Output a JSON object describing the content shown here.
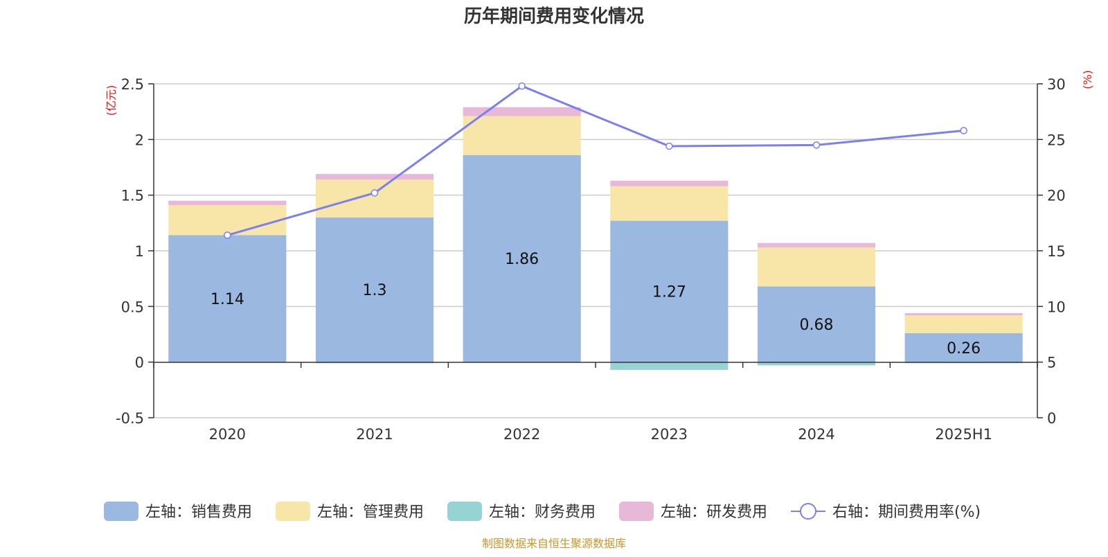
{
  "chart_data": {
    "type": "bar",
    "title": "历年期间费用变化情况",
    "categories": [
      "2020",
      "2021",
      "2022",
      "2023",
      "2024",
      "2025H1"
    ],
    "left_axis": {
      "unit": "(亿元)",
      "ylim": [
        -0.5,
        2.5
      ],
      "ticks": [
        "2.5",
        "2",
        "1.5",
        "1",
        "0.5",
        "0",
        "-0.5"
      ]
    },
    "right_axis": {
      "unit": "(%)",
      "ylim": [
        0,
        30
      ],
      "ticks": [
        "30",
        "25",
        "20",
        "15",
        "10",
        "5",
        "0"
      ]
    },
    "series": [
      {
        "name": "左轴：销售费用",
        "type": "stacked-bar",
        "axis": "left",
        "color": "#9bb8e0",
        "values": [
          1.14,
          1.3,
          1.86,
          1.27,
          0.68,
          0.26
        ],
        "labels": [
          "1.14",
          "1.3",
          "1.86",
          "1.27",
          "0.68",
          "0.26"
        ]
      },
      {
        "name": "左轴：管理费用",
        "type": "stacked-bar",
        "axis": "left",
        "color": "#f8e6a8",
        "values": [
          0.27,
          0.34,
          0.35,
          0.31,
          0.35,
          0.16
        ]
      },
      {
        "name": "左轴：财务费用",
        "type": "stacked-bar",
        "axis": "left",
        "color": "#96d4d4",
        "values": [
          0.0,
          -0.01,
          0.0,
          -0.07,
          -0.03,
          -0.01
        ]
      },
      {
        "name": "左轴：研发费用",
        "type": "stacked-bar",
        "axis": "left",
        "color": "#e8b8d8",
        "values": [
          0.04,
          0.05,
          0.08,
          0.05,
          0.04,
          0.02
        ]
      },
      {
        "name": "右轴：期间费用率(%)",
        "type": "line",
        "axis": "right",
        "color": "#7b7ff0",
        "values": [
          16.4,
          20.2,
          29.8,
          24.4,
          24.5,
          25.8
        ]
      }
    ],
    "legend_position": "bottom",
    "grid": true
  },
  "footer": {
    "source": "制图数据来自恒生聚源数据库"
  }
}
